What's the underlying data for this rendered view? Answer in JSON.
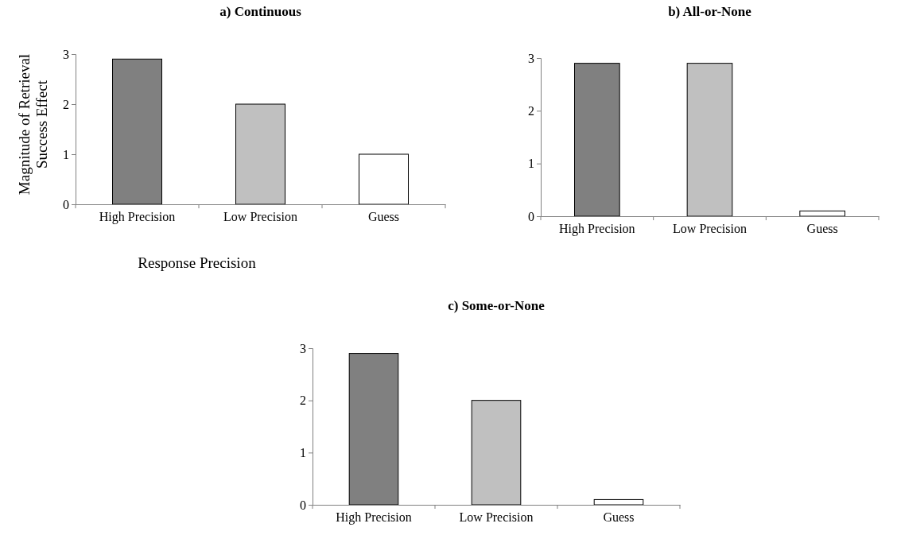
{
  "chart_data": [
    {
      "type": "bar",
      "title": "a) Continuous",
      "xlabel": "Response Precision",
      "ylabel": "Magnitude of Retrieval Success Effect",
      "categories": [
        "High Precision",
        "Low Precision",
        "Guess"
      ],
      "values": [
        2.9,
        2.0,
        1.0
      ],
      "colors": [
        "#808080",
        "#c0c0c0",
        "#ffffff"
      ],
      "ylim": [
        0,
        3
      ],
      "yticks": [
        0,
        1,
        2,
        3
      ]
    },
    {
      "type": "bar",
      "title": "b) All-or-None",
      "categories": [
        "High Precision",
        "Low Precision",
        "Guess"
      ],
      "values": [
        2.9,
        2.9,
        0.1
      ],
      "colors": [
        "#808080",
        "#c0c0c0",
        "#ffffff"
      ],
      "ylim": [
        0,
        3
      ],
      "yticks": [
        0,
        1,
        2,
        3
      ]
    },
    {
      "type": "bar",
      "title": "c) Some-or-None",
      "categories": [
        "High Precision",
        "Low Precision",
        "Guess"
      ],
      "values": [
        2.9,
        2.0,
        0.1
      ],
      "colors": [
        "#808080",
        "#c0c0c0",
        "#ffffff"
      ],
      "ylim": [
        0,
        3
      ],
      "yticks": [
        0,
        1,
        2,
        3
      ]
    }
  ]
}
